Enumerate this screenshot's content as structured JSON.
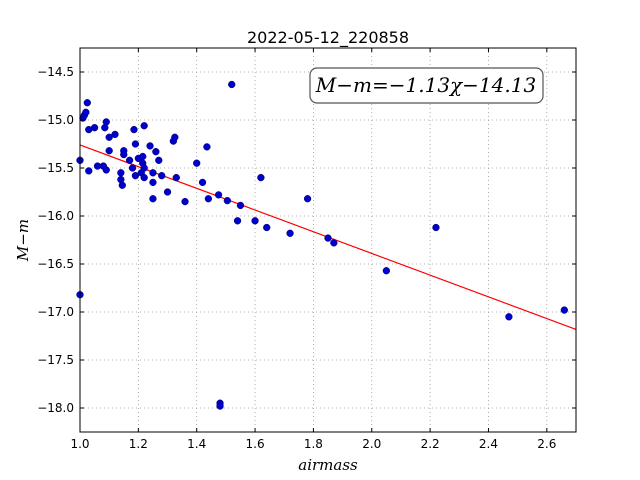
{
  "chart_data": {
    "type": "scatter",
    "title": "2022-05-12_220858",
    "xlabel": "airmass",
    "ylabel": "M−m",
    "xlim": [
      1.0,
      2.7
    ],
    "ylim": [
      -18.25,
      -14.25
    ],
    "x_ticks": [
      "1.0",
      "1.2",
      "1.4",
      "1.6",
      "1.8",
      "2.0",
      "2.2",
      "2.4",
      "2.6"
    ],
    "y_ticks": [
      "−14.5",
      "−15.0",
      "−15.5",
      "−16.0",
      "−16.5",
      "−17.0",
      "−17.5",
      "−18.0"
    ],
    "grid": true,
    "annotation": "M−m=−1.13χ−14.13",
    "annotation_position": "top-right",
    "colors": {
      "points": "#0000cc",
      "fit": "#ff0000"
    },
    "fit": {
      "slope": -1.13,
      "intercept": -14.13
    },
    "points": [
      [
        1.0,
        -16.82
      ],
      [
        1.0,
        -15.42
      ],
      [
        1.01,
        -14.98
      ],
      [
        1.015,
        -14.95
      ],
      [
        1.02,
        -14.92
      ],
      [
        1.025,
        -14.82
      ],
      [
        1.03,
        -15.1
      ],
      [
        1.03,
        -15.53
      ],
      [
        1.05,
        -15.08
      ],
      [
        1.06,
        -15.48
      ],
      [
        1.08,
        -15.48
      ],
      [
        1.085,
        -15.08
      ],
      [
        1.09,
        -15.02
      ],
      [
        1.09,
        -15.52
      ],
      [
        1.1,
        -15.18
      ],
      [
        1.1,
        -15.32
      ],
      [
        1.12,
        -15.15
      ],
      [
        1.14,
        -15.55
      ],
      [
        1.14,
        -15.62
      ],
      [
        1.145,
        -15.68
      ],
      [
        1.15,
        -15.32
      ],
      [
        1.15,
        -15.36
      ],
      [
        1.17,
        -15.42
      ],
      [
        1.18,
        -15.5
      ],
      [
        1.185,
        -15.1
      ],
      [
        1.19,
        -15.25
      ],
      [
        1.19,
        -15.58
      ],
      [
        1.2,
        -15.4
      ],
      [
        1.21,
        -15.55
      ],
      [
        1.215,
        -15.45
      ],
      [
        1.215,
        -15.38
      ],
      [
        1.22,
        -15.5
      ],
      [
        1.22,
        -15.6
      ],
      [
        1.22,
        -15.06
      ],
      [
        1.24,
        -15.27
      ],
      [
        1.25,
        -15.55
      ],
      [
        1.25,
        -15.65
      ],
      [
        1.25,
        -15.82
      ],
      [
        1.26,
        -15.33
      ],
      [
        1.27,
        -15.42
      ],
      [
        1.28,
        -15.58
      ],
      [
        1.3,
        -15.75
      ],
      [
        1.32,
        -15.22
      ],
      [
        1.325,
        -15.18
      ],
      [
        1.33,
        -15.6
      ],
      [
        1.36,
        -15.85
      ],
      [
        1.4,
        -15.45
      ],
      [
        1.42,
        -15.65
      ],
      [
        1.435,
        -15.28
      ],
      [
        1.44,
        -15.82
      ],
      [
        1.475,
        -15.78
      ],
      [
        1.48,
        -17.95
      ],
      [
        1.48,
        -17.98
      ],
      [
        1.505,
        -15.84
      ],
      [
        1.52,
        -14.63
      ],
      [
        1.54,
        -16.05
      ],
      [
        1.55,
        -15.89
      ],
      [
        1.6,
        -16.05
      ],
      [
        1.62,
        -15.6
      ],
      [
        1.64,
        -16.12
      ],
      [
        1.72,
        -16.18
      ],
      [
        1.78,
        -15.82
      ],
      [
        1.85,
        -16.23
      ],
      [
        1.87,
        -16.28
      ],
      [
        2.05,
        -16.57
      ],
      [
        2.22,
        -16.12
      ],
      [
        2.47,
        -17.05
      ],
      [
        2.66,
        -16.98
      ]
    ]
  }
}
